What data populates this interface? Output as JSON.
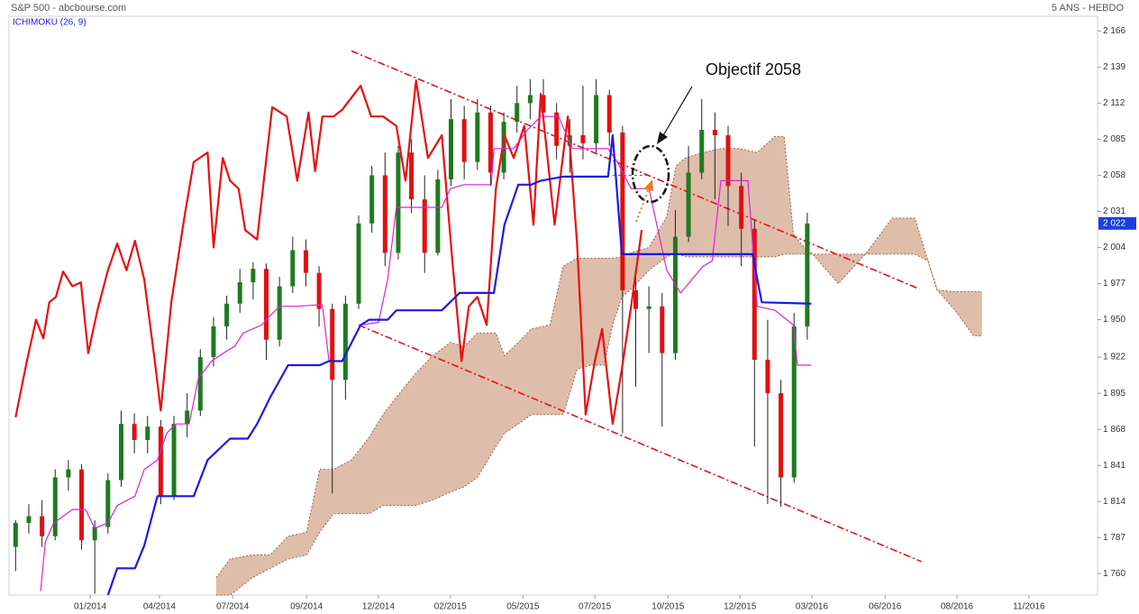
{
  "chart_data": {
    "type": "candlestick",
    "title": "S&P 500 - abcbourse.com",
    "period": "5 ANS - HEBDO",
    "indicator": "ICHIMOKU (26, 9)",
    "grid": false,
    "xlim": [
      0,
      165
    ],
    "ylim": [
      1744,
      2177
    ],
    "xticks": [
      {
        "value": 12.3,
        "label": "01/2014"
      },
      {
        "value": 22.8,
        "label": "04/2014"
      },
      {
        "value": 33.9,
        "label": "07/2014"
      },
      {
        "value": 45.1,
        "label": "09/2014"
      },
      {
        "value": 56.0,
        "label": "12/2014"
      },
      {
        "value": 66.9,
        "label": "02/2015"
      },
      {
        "value": 77.9,
        "label": "05/2015"
      },
      {
        "value": 88.8,
        "label": "07/2015"
      },
      {
        "value": 99.9,
        "label": "10/2015"
      },
      {
        "value": 110.8,
        "label": "12/2015"
      },
      {
        "value": 121.7,
        "label": "03/2016"
      },
      {
        "value": 132.8,
        "label": "06/2016"
      },
      {
        "value": 143.7,
        "label": "08/2016"
      },
      {
        "value": 154.6,
        "label": "11/2016"
      }
    ],
    "yticks": [
      {
        "value": 2166,
        "label": "2 166"
      },
      {
        "value": 2139,
        "label": "2 139"
      },
      {
        "value": 2112,
        "label": "2 112"
      },
      {
        "value": 2085,
        "label": "2 085"
      },
      {
        "value": 2058,
        "label": "2 058"
      },
      {
        "value": 2031,
        "label": "2 031"
      },
      {
        "value": 2004,
        "label": "2 004"
      },
      {
        "value": 1977,
        "label": "1 977"
      },
      {
        "value": 1950,
        "label": "1 950"
      },
      {
        "value": 1922,
        "label": "1 922"
      },
      {
        "value": 1895,
        "label": "1 895"
      },
      {
        "value": 1868,
        "label": "1 868"
      },
      {
        "value": 1841,
        "label": "1 841"
      },
      {
        "value": 1814,
        "label": "1 814"
      },
      {
        "value": 1787,
        "label": "1 787"
      },
      {
        "value": 1760,
        "label": "1 760"
      }
    ],
    "last": {
      "value": 2022,
      "label": "2 022",
      "color": "#1a3fe0"
    },
    "candles": {
      "up_color": "#1e7a1e",
      "down_color": "#e01010",
      "x": [
        1,
        3,
        5,
        7,
        9,
        11,
        13,
        15,
        17,
        19,
        21,
        23,
        25,
        27,
        29,
        31,
        33,
        35,
        37,
        39,
        41,
        43,
        45,
        47,
        49,
        51,
        53,
        55,
        57,
        59,
        61,
        63,
        65,
        67,
        69,
        71,
        73,
        75,
        77,
        79,
        81,
        83,
        85,
        87,
        89,
        91,
        93,
        95,
        97,
        99,
        101,
        103,
        105,
        107,
        109,
        111,
        113,
        115,
        117,
        119,
        121
      ],
      "open": [
        1780,
        1798,
        1803,
        1788,
        1832,
        1838,
        1785,
        1795,
        1830,
        1872,
        1860,
        1870,
        1818,
        1872,
        1882,
        1922,
        1945,
        1962,
        1978,
        1988,
        1935,
        1975,
        2002,
        1985,
        1958,
        1905,
        1962,
        2022,
        2058,
        2000,
        2075,
        2040,
        2000,
        2055,
        2100,
        2068,
        2105,
        2060,
        2098,
        2112,
        2118,
        2105,
        2080,
        2088,
        2082,
        2118,
        2090,
        1972,
        1958,
        1960,
        1925,
        2012,
        2060,
        2092,
        2088,
        2050,
        2018,
        1920,
        1895,
        1832,
        1945
      ],
      "high": [
        1800,
        1812,
        1815,
        1838,
        1845,
        1842,
        1800,
        1835,
        1882,
        1880,
        1878,
        1875,
        1878,
        1895,
        1928,
        1952,
        1968,
        1988,
        1993,
        1992,
        1982,
        2012,
        2010,
        1990,
        1962,
        1968,
        2028,
        2065,
        2075,
        2080,
        2085,
        2058,
        2062,
        2115,
        2110,
        2115,
        2110,
        2105,
        2125,
        2130,
        2130,
        2112,
        2100,
        2125,
        2130,
        2122,
        2095,
        1985,
        1975,
        1970,
        2032,
        2080,
        2115,
        2105,
        2095,
        2060,
        2025,
        1950,
        1905,
        1955,
        2030
      ],
      "low": [
        1762,
        1790,
        1780,
        1785,
        1822,
        1778,
        1745,
        1790,
        1825,
        1850,
        1850,
        1812,
        1815,
        1862,
        1878,
        1915,
        1935,
        1955,
        1965,
        1920,
        1930,
        1970,
        1975,
        1945,
        1820,
        1890,
        1958,
        2015,
        1990,
        1995,
        2030,
        1985,
        1998,
        2050,
        2055,
        2062,
        2050,
        2055,
        2090,
        2100,
        2095,
        2070,
        2060,
        2070,
        2075,
        2080,
        1865,
        1900,
        1925,
        1870,
        1920,
        2008,
        2055,
        2040,
        2020,
        1990,
        1855,
        1812,
        1810,
        1828,
        1935
      ],
      "close": [
        1798,
        1803,
        1788,
        1832,
        1838,
        1785,
        1795,
        1830,
        1872,
        1860,
        1870,
        1818,
        1872,
        1882,
        1922,
        1945,
        1962,
        1978,
        1988,
        1935,
        1975,
        2002,
        1985,
        1958,
        1905,
        1962,
        2022,
        2058,
        2000,
        2075,
        2040,
        2000,
        2055,
        2100,
        2068,
        2105,
        2060,
        2098,
        2112,
        2118,
        2105,
        2080,
        2088,
        2082,
        2118,
        2090,
        1972,
        1958,
        1960,
        1925,
        2012,
        2060,
        2092,
        2088,
        2050,
        2018,
        1920,
        1895,
        1832,
        1945,
        2022
      ]
    },
    "cloud": {
      "color": "#d9b19c",
      "edge_color": "#9a6248",
      "x": [
        31.4,
        33.5,
        36.9,
        39.6,
        42.3,
        45.1,
        47.1,
        49.2,
        51.9,
        54.6,
        56.7,
        58.7,
        61.5,
        64.2,
        66.9,
        69.0,
        71.0,
        73.8,
        75.1,
        77.2,
        79.2,
        82.0,
        84.0,
        86.1,
        88.1,
        90.2,
        91.5,
        92.9,
        94.3,
        97.0,
        99.7,
        101.1,
        102.5,
        105.2,
        107.9,
        110.7,
        113.4,
        116.1,
        117.5,
        118.9,
        120.2,
        121.6,
        125.7,
        129.8,
        133.9,
        137.3,
        139.3,
        140.7,
        143.4,
        146.2,
        147.5
      ],
      "span_a": [
        1757,
        1771,
        1774,
        1774,
        1788,
        1791,
        1838,
        1838,
        1845,
        1862,
        1879,
        1892,
        1909,
        1923,
        1933,
        1930,
        1940,
        1940,
        1923,
        1933,
        1943,
        1946,
        1990,
        1996,
        1996,
        1996,
        1996,
        1997,
        2000,
        2004,
        2027,
        2065,
        2071,
        2075,
        2078,
        2078,
        2075,
        2087,
        2087,
        2014,
        2006,
        2000,
        1977,
        1999,
        2026,
        2026,
        1994,
        1972,
        1957,
        1938,
        1938
      ],
      "span_b": [
        1744,
        1744,
        1757,
        1764,
        1771,
        1774,
        1791,
        1805,
        1805,
        1805,
        1811,
        1811,
        1811,
        1815,
        1821,
        1825,
        1832,
        1855,
        1865,
        1872,
        1879,
        1879,
        1879,
        1913,
        1916,
        1916,
        1946,
        1967,
        1973,
        1987,
        1997,
        2000,
        1997,
        1997,
        1997,
        1997,
        1997,
        1997,
        1999,
        1999,
        1999,
        1999,
        1999,
        1999,
        1999,
        1999,
        1994,
        1972,
        1971,
        1971,
        1971
      ]
    },
    "lines": [
      {
        "color": "#e81010",
        "width": 2.2,
        "x": [
          1.0,
          2.7,
          4.1,
          5.2,
          6.1,
          7.1,
          8.2,
          9.6,
          10.9,
          12.0,
          13.4,
          15.0,
          16.4,
          17.8,
          19.1,
          20.5,
          22.1,
          23.0,
          24.6,
          26.6,
          28.0,
          30.1,
          31.0,
          32.4,
          33.5,
          34.8,
          35.8,
          37.6,
          39.9,
          42.1,
          43.7,
          45.4,
          46.4,
          47.5,
          49.2,
          50.5,
          53.3,
          54.9,
          56.7,
          58.7,
          60.1,
          61.7,
          63.5,
          65.6,
          67.2,
          68.6,
          69.7,
          71.0,
          72.4,
          73.8,
          75.1,
          76.5,
          78.1,
          79.5,
          80.6,
          82.7,
          84.7,
          86.1,
          87.4,
          88.8,
          89.9,
          91.5,
          92.9,
          94.3,
          95.9
        ],
        "values": [
          1877,
          1919,
          1950,
          1936,
          1963,
          1967,
          1986,
          1975,
          1978,
          1925,
          1957,
          1987,
          2007,
          1987,
          2009,
          1980,
          1919,
          1882,
          1963,
          2027,
          2068,
          2075,
          2004,
          2071,
          2054,
          2048,
          2017,
          2010,
          2109,
          2102,
          2054,
          2105,
          2061,
          2102,
          2102,
          2107,
          2125,
          2102,
          2102,
          2095,
          2054,
          2129,
          2071,
          2088,
          1994,
          1919,
          1960,
          1967,
          1946,
          2048,
          2088,
          2071,
          2095,
          2021,
          2119,
          2021,
          2102,
          2007,
          1879,
          1919,
          1943,
          1872,
          1913,
          1960,
          2017
        ]
      },
      {
        "color": "#e020d8",
        "width": 1.2,
        "x": [
          4.8,
          5.5,
          6.8,
          9.6,
          11.6,
          13.0,
          15.0,
          16.4,
          19.1,
          20.5,
          22.5,
          23.9,
          25.3,
          27.3,
          28.7,
          30.7,
          32.8,
          34.2,
          35.5,
          38.3,
          39.6,
          41.0,
          43.7,
          46.4,
          47.5,
          48.5,
          50.5,
          53.3,
          56.0,
          57.4,
          58.7,
          65.6,
          66.9,
          69.0,
          73.1,
          73.5,
          76.5,
          78.6,
          80.6,
          83.3,
          85.4,
          90.8,
          92.2,
          94.3,
          97.0,
          99.7,
          101.8,
          105.2,
          106.6,
          107.9,
          112.0,
          113.4,
          116.1,
          118.9,
          119.5,
          121.6
        ],
        "values": [
          1747,
          1784,
          1798,
          1808,
          1808,
          1794,
          1798,
          1811,
          1818,
          1838,
          1845,
          1865,
          1872,
          1872,
          1906,
          1919,
          1926,
          1930,
          1940,
          1946,
          1953,
          1960,
          1960,
          1961,
          1961,
          1919,
          1919,
          1946,
          1948,
          1980,
          2034,
          2034,
          2048,
          2051,
          2051,
          2078,
          2078,
          2092,
          2102,
          2102,
          2078,
          2078,
          2068,
          2048,
          2048,
          1987,
          1970,
          1990,
          1994,
          2054,
          2054,
          1960,
          1957,
          1946,
          1916,
          1916
        ]
      },
      {
        "color": "#1a1ae6",
        "width": 2.2,
        "x": [
          15.0,
          16.4,
          19.1,
          20.5,
          22.5,
          28.0,
          30.1,
          33.5,
          36.2,
          37.6,
          39.6,
          42.3,
          43.7,
          47.1,
          48.5,
          50.5,
          53.3,
          54.6,
          57.4,
          58.7,
          65.6,
          68.3,
          73.5,
          75.1,
          77.2,
          79.2,
          80.6,
          84.0,
          90.8,
          91.5,
          92.9,
          112.7,
          114.1,
          121.6
        ],
        "values": [
          1744,
          1764,
          1764,
          1781,
          1818,
          1818,
          1845,
          1861,
          1861,
          1872,
          1892,
          1916,
          1916,
          1916,
          1919,
          1919,
          1946,
          1950,
          1950,
          1957,
          1957,
          1970,
          1970,
          2021,
          2051,
          2051,
          2054,
          2057,
          2057,
          2088,
          1999,
          1999,
          1963,
          1962
        ]
      }
    ],
    "trendlines": {
      "color": "#e81010",
      "lines": [
        {
          "x": [
            51.9,
            138.0
          ],
          "values": [
            2151,
            1973
          ]
        },
        {
          "x": [
            53.0,
            138.3
          ],
          "values": [
            1946,
            1769
          ]
        }
      ]
    },
    "target": {
      "label": "Objectif 2058",
      "value": 2058,
      "color": "#3050e0",
      "x": [
        91.5,
        97.0
      ]
    }
  }
}
